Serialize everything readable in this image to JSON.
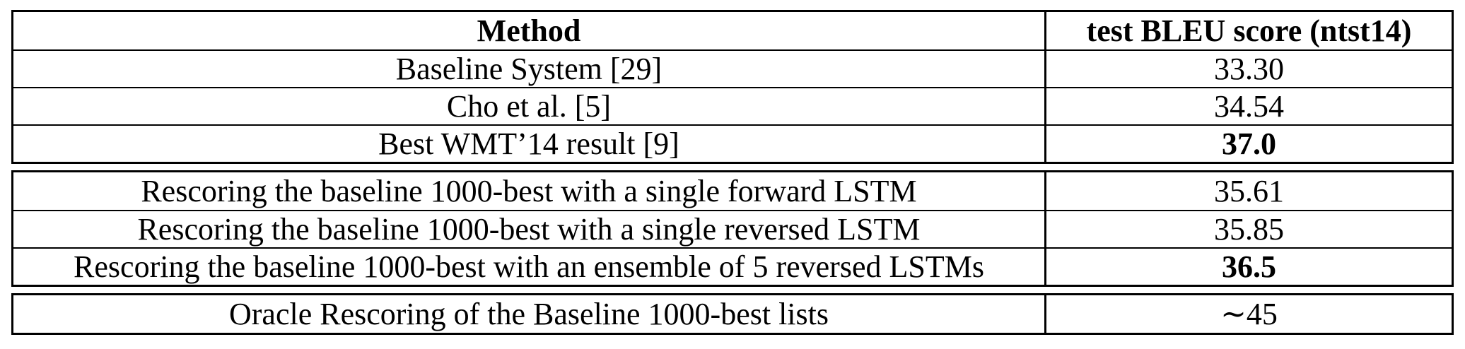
{
  "table": {
    "header": {
      "method": "Method",
      "score": "test BLEU score (ntst14)"
    },
    "group1": [
      {
        "method": "Baseline System [29]",
        "score": "33.30"
      },
      {
        "method": "Cho et al. [5]",
        "score": "34.54"
      },
      {
        "method": "Best WMT’14 result [9]",
        "score": "37.0"
      }
    ],
    "group2": [
      {
        "method": "Rescoring the baseline 1000-best with a single forward LSTM",
        "score": "35.61"
      },
      {
        "method": "Rescoring the baseline 1000-best with a single reversed LSTM",
        "score": "35.85"
      },
      {
        "method": "Rescoring the baseline 1000-best with an ensemble of 5 reversed LSTMs",
        "score": "36.5"
      }
    ],
    "group3": [
      {
        "method": "Oracle Rescoring of the Baseline 1000-best lists",
        "score": "∼45"
      }
    ]
  }
}
